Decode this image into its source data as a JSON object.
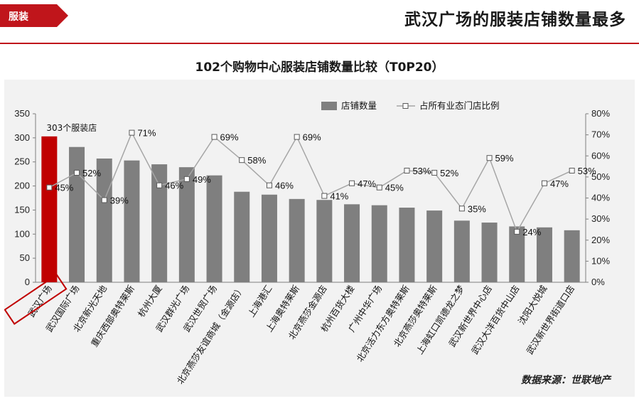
{
  "header": {
    "tag_label": "服装",
    "headline": "武汉广场的服装店铺数量最多",
    "accent_color": "#c0151b"
  },
  "chart_title": "102个购物中心服装店铺数量比较（T0P20）",
  "source_text": "数据来源：世联地产",
  "chart_data": {
    "type": "bar",
    "categories": [
      "武汉广场",
      "武汉国际广场",
      "北京新光天地",
      "重庆西部奥特莱斯",
      "杭州大厦",
      "武汉群光广场",
      "武汉世贸广场",
      "北京燕莎友谊商城（金源店）",
      "上海港汇",
      "上海奥特莱斯",
      "北京燕莎金源店",
      "杭州百货大楼",
      "广州中华广场",
      "北京活力东方奥特莱斯",
      "北京燕莎奥特莱斯",
      "上海虹口凯德龙之梦",
      "武汉新世界中心店",
      "武汉大洋百货中山店",
      "沈阳大悦城",
      "武汉新世界街道口店"
    ],
    "series": [
      {
        "name": "店铺数量",
        "axis": "left",
        "type": "bar",
        "color": "#7f7f7f",
        "highlight_color": "#c00000",
        "values": [
          303,
          281,
          257,
          253,
          245,
          239,
          222,
          188,
          182,
          173,
          171,
          162,
          160,
          155,
          149,
          128,
          124,
          116,
          114,
          108
        ]
      },
      {
        "name": "占所有业态门店比例",
        "axis": "right",
        "type": "line",
        "color": "#a6a6a6",
        "values": [
          45,
          52,
          39,
          71,
          46,
          49,
          69,
          58,
          46,
          69,
          41,
          47,
          45,
          53,
          52,
          35,
          59,
          24,
          47,
          53
        ]
      }
    ],
    "point_labels": [
      "45%",
      "52%",
      "39%",
      "71%",
      "46%",
      "49%",
      "69%",
      "58%",
      "46%",
      "69%",
      "41%",
      "47%",
      "45%",
      "53%",
      "52%",
      "35%",
      "59%",
      "24%",
      "47%",
      "53%"
    ],
    "bar_annotation": "303个服装店",
    "left_axis": {
      "min": 0,
      "max": 350,
      "ticks": [
        "0",
        "50",
        "100",
        "150",
        "200",
        "250",
        "300",
        "350"
      ]
    },
    "right_axis": {
      "min": 0,
      "max": 80,
      "ticks": [
        "0%",
        "10%",
        "20%",
        "30%",
        "40%",
        "50%",
        "60%",
        "70%",
        "80%"
      ]
    },
    "legend_position": "top-right",
    "grid": false
  }
}
